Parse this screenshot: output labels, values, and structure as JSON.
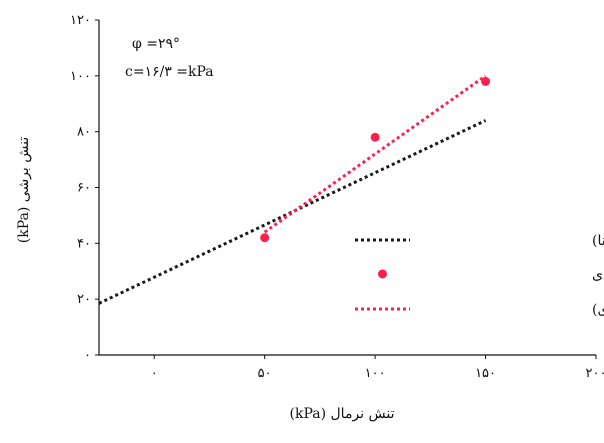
{
  "chart_data": {
    "type": "scatter",
    "xlabel": "تنش نرمال (kPa)",
    "ylabel": "(kPa) تنش برشی",
    "xlim": [
      -25,
      200
    ],
    "ylim": [
      0,
      120
    ],
    "x_ticks": [
      {
        "value": 0,
        "label": "۰"
      },
      {
        "value": 50,
        "label": "۵۰"
      },
      {
        "value": 100,
        "label": "۱۰۰"
      },
      {
        "value": 150,
        "label": "۱۵۰"
      },
      {
        "value": 200,
        "label": "۲۰۰"
      }
    ],
    "y_ticks": [
      {
        "value": 0,
        "label": "۰"
      },
      {
        "value": 20,
        "label": "۲۰"
      },
      {
        "value": 40,
        "label": "۴۰"
      },
      {
        "value": 60,
        "label": "۶۰"
      },
      {
        "value": 80,
        "label": "۸۰"
      },
      {
        "value": 100,
        "label": "۱۰۰"
      },
      {
        "value": 120,
        "label": "۱۲۰"
      }
    ],
    "grid": false,
    "legend_position": "right",
    "annotations": {
      "phi": "φ =۲۹°",
      "cohesion": "c=۱۶/۳ =kPa"
    },
    "series": [
      {
        "name": "آزمایشگاهی (دی دونا)",
        "kind": "dotted-line",
        "color": "#1a1a1a",
        "x": [
          -25,
          150
        ],
        "y": [
          18.5,
          84
        ]
      },
      {
        "name": "مدلسازی عددی",
        "kind": "points",
        "color": "#ff1f4f",
        "x": [
          50,
          100,
          150
        ],
        "y": [
          42,
          78,
          98
        ]
      },
      {
        "name": "Linear (مدلسازی عددی)",
        "kind": "dotted-line",
        "color": "#ff1f4f",
        "x": [
          50,
          150
        ],
        "y": [
          44,
          100
        ]
      }
    ]
  }
}
